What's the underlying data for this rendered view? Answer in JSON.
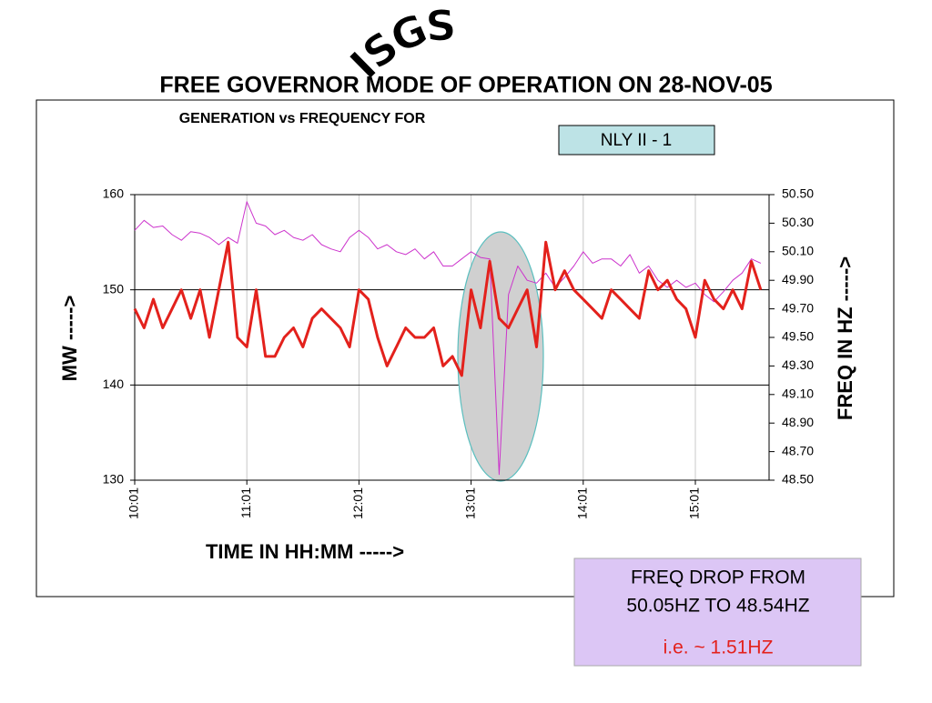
{
  "header": {
    "logo": "ISGS",
    "title": "FREE GOVERNOR MODE OF OPERATION ON 28-NOV-05"
  },
  "chart_data": {
    "type": "line",
    "title": "GENERATION vs FREQUENCY FOR",
    "subtitle": "NLY II - 1",
    "y_label": "MW ----->",
    "y2_label": "FREQ IN HZ ----->",
    "x_label": "TIME IN HH:MM ----->",
    "categories": [
      "10:01",
      null,
      null,
      null,
      null,
      null,
      null,
      null,
      null,
      null,
      null,
      null,
      "11:01",
      null,
      null,
      null,
      null,
      null,
      null,
      null,
      null,
      null,
      null,
      null,
      "12:01",
      null,
      null,
      null,
      null,
      null,
      null,
      null,
      null,
      null,
      null,
      null,
      "13:01",
      null,
      null,
      null,
      null,
      null,
      null,
      null,
      null,
      null,
      null,
      null,
      "14:01",
      null,
      null,
      null,
      null,
      null,
      null,
      null,
      null,
      null,
      null,
      null,
      "15:01",
      null,
      null,
      null,
      null,
      null,
      null,
      null
    ],
    "series": [
      {
        "name": "MW",
        "color": "#e3211c",
        "axis": "y",
        "values": [
          148,
          146,
          149,
          146,
          148,
          150,
          147,
          150,
          145,
          150,
          155,
          145,
          144,
          150,
          143,
          143,
          145,
          146,
          144,
          147,
          148,
          147,
          146,
          144,
          150,
          149,
          145,
          142,
          144,
          146,
          145,
          145,
          146,
          142,
          143,
          141,
          150,
          146,
          153,
          147,
          146,
          148,
          150,
          144,
          155,
          150,
          152,
          150,
          149,
          148,
          147,
          150,
          149,
          148,
          147,
          152,
          150,
          151,
          149,
          148,
          145,
          151,
          149,
          148,
          150,
          148,
          153,
          150
        ]
      },
      {
        "name": "FREQ",
        "color": "#cc33cc",
        "axis": "y2",
        "values": [
          50.25,
          50.32,
          50.27,
          50.28,
          50.22,
          50.18,
          50.24,
          50.23,
          50.2,
          50.15,
          50.2,
          50.16,
          50.45,
          50.3,
          50.28,
          50.22,
          50.25,
          50.2,
          50.18,
          50.22,
          50.15,
          50.12,
          50.1,
          50.2,
          50.25,
          50.2,
          50.12,
          50.15,
          50.1,
          50.08,
          50.12,
          50.05,
          50.1,
          50.0,
          50.0,
          50.05,
          50.1,
          50.06,
          50.05,
          48.54,
          49.8,
          50.0,
          49.9,
          49.88,
          49.95,
          49.85,
          49.92,
          50.0,
          50.1,
          50.02,
          50.05,
          50.05,
          50.0,
          50.08,
          49.95,
          50.0,
          49.9,
          49.85,
          49.9,
          49.85,
          49.88,
          49.8,
          49.75,
          49.82,
          49.9,
          49.95,
          50.05,
          50.02
        ]
      }
    ],
    "ylim": [
      130,
      160
    ],
    "yticks": [
      130,
      140,
      150,
      160
    ],
    "y2lim": [
      48.5,
      50.5
    ],
    "y2ticks": [
      {
        "value": 48.5,
        "label": "48.50"
      },
      {
        "value": 48.7,
        "label": "48.70"
      },
      {
        "value": 48.9,
        "label": "48.90"
      },
      {
        "value": 49.1,
        "label": "49.10"
      },
      {
        "value": 49.3,
        "label": "49.30"
      },
      {
        "value": 49.5,
        "label": "49.50"
      },
      {
        "value": 49.7,
        "label": "49.70"
      },
      {
        "value": 49.9,
        "label": "49.90"
      },
      {
        "value": 50.1,
        "label": "50.10"
      },
      {
        "value": 50.3,
        "label": "50.30"
      },
      {
        "value": 50.5,
        "label": "50.50"
      }
    ],
    "grid": true
  },
  "annotation": {
    "lines": [
      "FREQ DROP FROM",
      "50.05HZ TO 48.54HZ",
      "i.e. ~ 1.51HZ"
    ]
  }
}
